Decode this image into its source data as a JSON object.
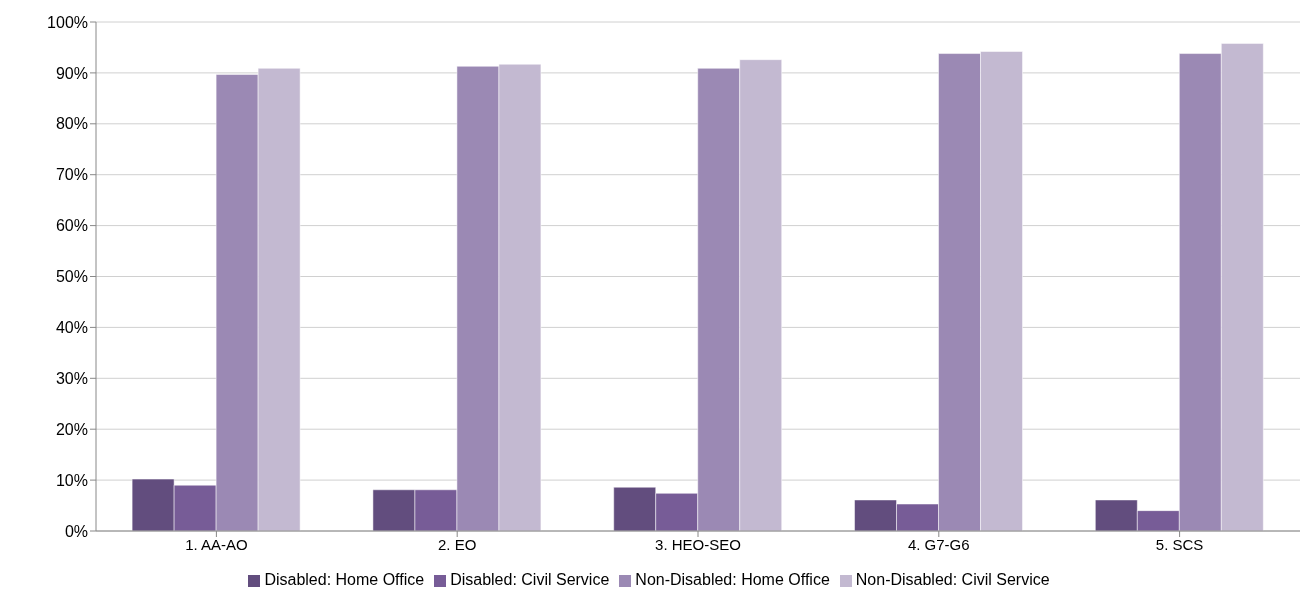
{
  "chart_data": {
    "type": "bar",
    "categories": [
      "1. AA-AO",
      "2. EO",
      "3. HEO-SEO",
      "4. G7-G6",
      "5. SCS"
    ],
    "series": [
      {
        "name": "Disabled: Home Office",
        "color": "#624d7e",
        "values": [
          10.2,
          8.1,
          8.6,
          6.1,
          6.1
        ]
      },
      {
        "name": "Disabled: Civil Service",
        "color": "#775c97",
        "values": [
          9.0,
          8.1,
          7.4,
          5.3,
          4.0
        ]
      },
      {
        "name": "Non-Disabled: Home Office",
        "color": "#9b89b4",
        "values": [
          89.7,
          91.3,
          90.9,
          93.8,
          93.8
        ]
      },
      {
        "name": "Non-Disabled: Civil Service",
        "color": "#c3b9d1",
        "values": [
          90.9,
          91.7,
          92.6,
          94.2,
          95.8
        ]
      }
    ],
    "ylim": [
      0,
      100
    ],
    "yticks": [
      {
        "value": 0,
        "label": "0%"
      },
      {
        "value": 10,
        "label": "10%"
      },
      {
        "value": 20,
        "label": "20%"
      },
      {
        "value": 30,
        "label": "30%"
      },
      {
        "value": 40,
        "label": "40%"
      },
      {
        "value": 50,
        "label": "50%"
      },
      {
        "value": 60,
        "label": "60%"
      },
      {
        "value": 70,
        "label": "70%"
      },
      {
        "value": 80,
        "label": "80%"
      },
      {
        "value": 90,
        "label": "90%"
      },
      {
        "value": 100,
        "label": "100%"
      }
    ],
    "grid": "y",
    "legend": "bottom"
  }
}
